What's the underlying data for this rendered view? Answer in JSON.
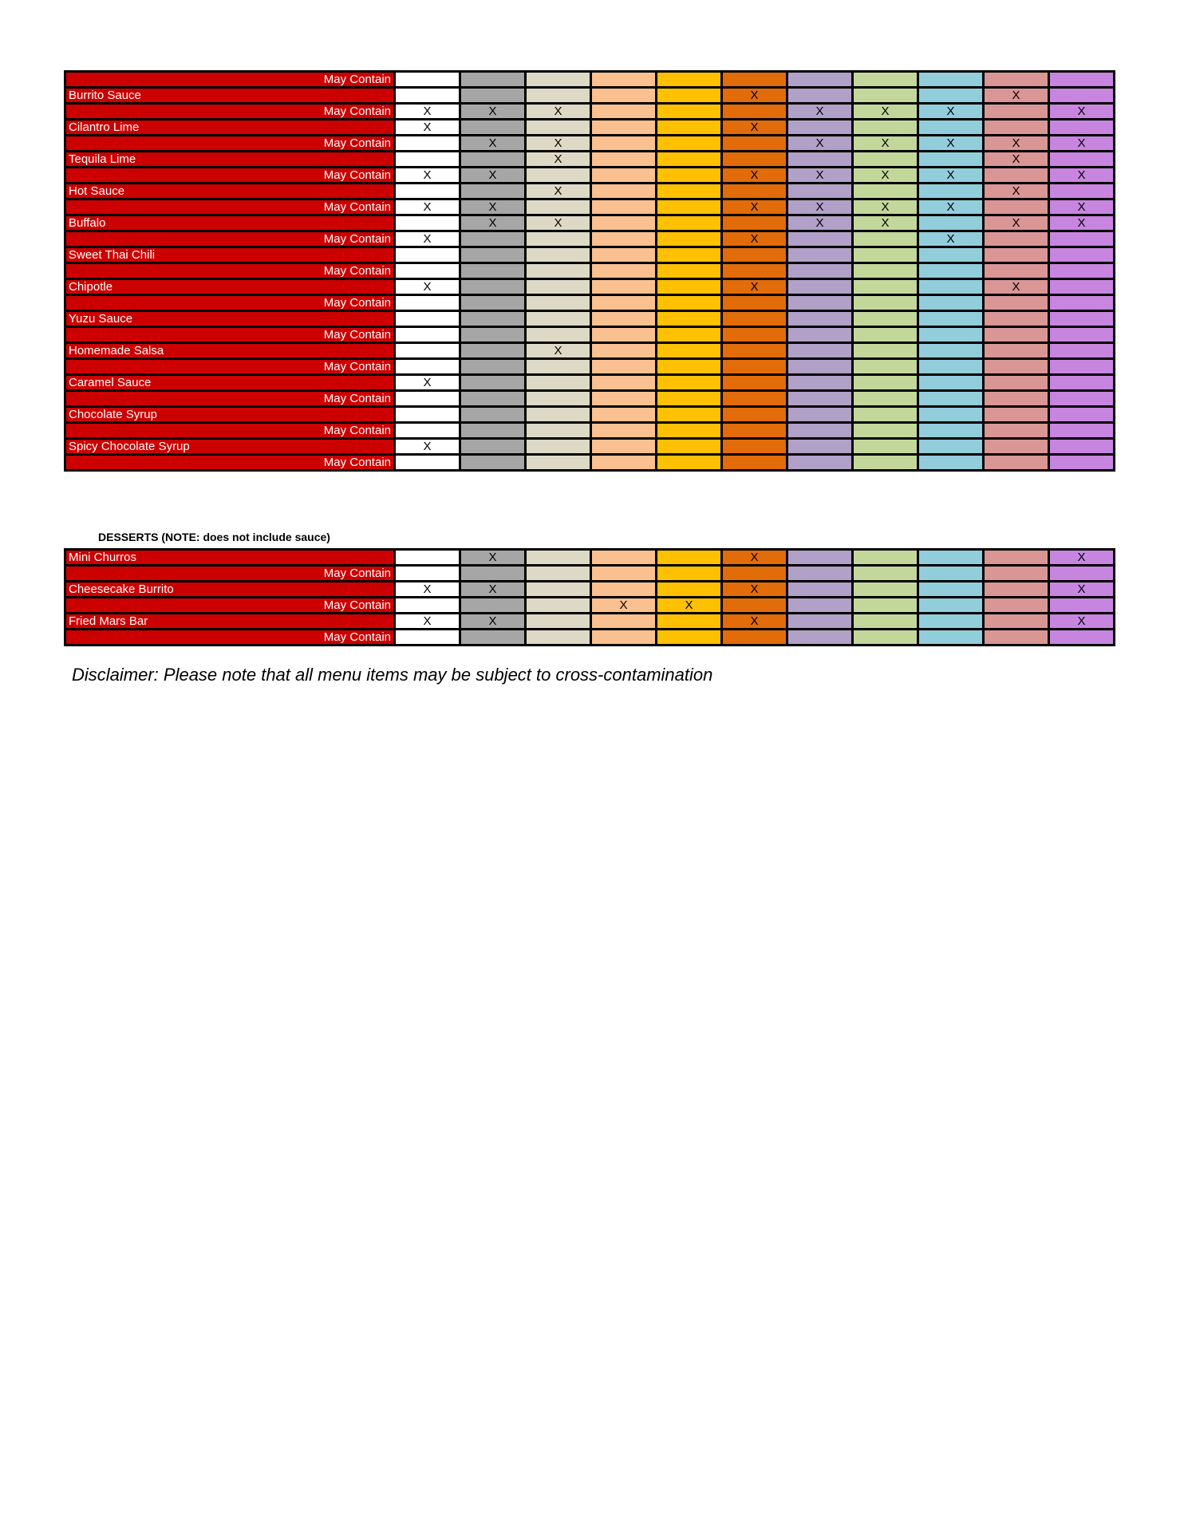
{
  "column_colors": [
    "#ffffff",
    "#a6a6a6",
    "#ddd9c4",
    "#fac090",
    "#ffc000",
    "#e26b0a",
    "#b1a0c7",
    "#c4d79b",
    "#92cddc",
    "#da9694",
    "#c785e0"
  ],
  "label_color": "#cc0000",
  "sauces": [
    {
      "name": "",
      "type": "may",
      "label": "May Contain",
      "marks": [
        "",
        "",
        "",
        "",
        "",
        "",
        "",
        "",
        "",
        "",
        ""
      ]
    },
    {
      "name": "Burrito Sauce",
      "type": "item",
      "label": "Burrito Sauce",
      "marks": [
        "",
        "",
        "",
        "",
        "",
        "X",
        "",
        "",
        "",
        "X",
        ""
      ]
    },
    {
      "type": "may",
      "label": "May Contain",
      "marks": [
        "X",
        "X",
        "X",
        "",
        "",
        "",
        "X",
        "X",
        "X",
        "",
        "X"
      ]
    },
    {
      "type": "item",
      "label": "Cilantro Lime",
      "marks": [
        "X",
        "",
        "",
        "",
        "",
        "X",
        "",
        "",
        "",
        "",
        ""
      ]
    },
    {
      "type": "may",
      "label": "May Contain",
      "marks": [
        "",
        "X",
        "X",
        "",
        "",
        "",
        "X",
        "X",
        "X",
        "X",
        "X"
      ]
    },
    {
      "type": "item",
      "label": "Tequila Lime",
      "marks": [
        "",
        "",
        "X",
        "",
        "",
        "",
        "",
        "",
        "",
        "X",
        ""
      ]
    },
    {
      "type": "may",
      "label": "May Contain",
      "marks": [
        "X",
        "X",
        "",
        "",
        "",
        "X",
        "X",
        "X",
        "X",
        "",
        "X"
      ]
    },
    {
      "type": "item",
      "label": "Hot Sauce",
      "marks": [
        "",
        "",
        "X",
        "",
        "",
        "",
        "",
        "",
        "",
        "X",
        ""
      ]
    },
    {
      "type": "may",
      "label": "May Contain",
      "marks": [
        "X",
        "X",
        "",
        "",
        "",
        "X",
        "X",
        "X",
        "X",
        "",
        "X"
      ]
    },
    {
      "type": "item",
      "label": "Buffalo",
      "marks": [
        "",
        "X",
        "X",
        "",
        "",
        "",
        "X",
        "X",
        "",
        "X",
        "X"
      ]
    },
    {
      "type": "may",
      "label": "May Contain",
      "marks": [
        "X",
        "",
        "",
        "",
        "",
        "X",
        "",
        "",
        "X",
        "",
        ""
      ]
    },
    {
      "type": "item",
      "label": "Sweet Thai Chili",
      "marks": [
        "",
        "",
        "",
        "",
        "",
        "",
        "",
        "",
        "",
        "",
        ""
      ]
    },
    {
      "type": "may",
      "label": "May Contain",
      "marks": [
        "",
        "",
        "",
        "",
        "",
        "",
        "",
        "",
        "",
        "",
        ""
      ]
    },
    {
      "type": "item",
      "label": "Chipotle",
      "marks": [
        "X",
        "",
        "",
        "",
        "",
        "X",
        "",
        "",
        "",
        "X",
        ""
      ]
    },
    {
      "type": "may",
      "label": "May Contain",
      "marks": [
        "",
        "",
        "",
        "",
        "",
        "",
        "",
        "",
        "",
        "",
        ""
      ]
    },
    {
      "type": "item",
      "label": "Yuzu Sauce",
      "marks": [
        "",
        "",
        "",
        "",
        "",
        "",
        "",
        "",
        "",
        "",
        ""
      ]
    },
    {
      "type": "may",
      "label": "May Contain",
      "marks": [
        "",
        "",
        "",
        "",
        "",
        "",
        "",
        "",
        "",
        "",
        ""
      ]
    },
    {
      "type": "item",
      "label": "Homemade Salsa",
      "marks": [
        "",
        "",
        "X",
        "",
        "",
        "",
        "",
        "",
        "",
        "",
        ""
      ]
    },
    {
      "type": "may",
      "label": "May Contain",
      "marks": [
        "",
        "",
        "",
        "",
        "",
        "",
        "",
        "",
        "",
        "",
        ""
      ]
    },
    {
      "type": "item",
      "label": "Caramel Sauce",
      "marks": [
        "X",
        "",
        "",
        "",
        "",
        "",
        "",
        "",
        "",
        "",
        ""
      ]
    },
    {
      "type": "may",
      "label": "May Contain",
      "marks": [
        "",
        "",
        "",
        "",
        "",
        "",
        "",
        "",
        "",
        "",
        ""
      ]
    },
    {
      "type": "item",
      "label": "Chocolate Syrup",
      "marks": [
        "",
        "",
        "",
        "",
        "",
        "",
        "",
        "",
        "",
        "",
        ""
      ]
    },
    {
      "type": "may",
      "label": "May Contain",
      "marks": [
        "",
        "",
        "",
        "",
        "",
        "",
        "",
        "",
        "",
        "",
        ""
      ]
    },
    {
      "type": "item",
      "label": "Spicy Chocolate Syrup",
      "marks": [
        "X",
        "",
        "",
        "",
        "",
        "",
        "",
        "",
        "",
        "",
        ""
      ]
    },
    {
      "type": "may",
      "label": "May Contain",
      "marks": [
        "",
        "",
        "",
        "",
        "",
        "",
        "",
        "",
        "",
        "",
        ""
      ]
    }
  ],
  "desserts_heading": "DESSERTS (NOTE: does not include sauce)",
  "desserts": [
    {
      "type": "item",
      "label": "Mini Churros",
      "marks": [
        "",
        "X",
        "",
        "",
        "",
        "X",
        "",
        "",
        "",
        "",
        "X"
      ]
    },
    {
      "type": "may",
      "label": "May Contain",
      "marks": [
        "",
        "",
        "",
        "",
        "",
        "",
        "",
        "",
        "",
        "",
        ""
      ]
    },
    {
      "type": "item",
      "label": "Cheesecake Burrito",
      "marks": [
        "X",
        "X",
        "",
        "",
        "",
        "X",
        "",
        "",
        "",
        "",
        "X"
      ]
    },
    {
      "type": "may",
      "label": "May Contain",
      "marks": [
        "",
        "",
        "",
        "X",
        "X",
        "",
        "",
        "",
        "",
        "",
        ""
      ]
    },
    {
      "type": "item",
      "label": "Fried Mars Bar",
      "marks": [
        "X",
        "X",
        "",
        "",
        "",
        "X",
        "",
        "",
        "",
        "",
        "X"
      ]
    },
    {
      "type": "may",
      "label": "May Contain",
      "marks": [
        "",
        "",
        "",
        "",
        "",
        "",
        "",
        "",
        "",
        "",
        ""
      ]
    }
  ],
  "disclaimer": "Disclaimer: Please note that all menu items may be subject to cross-contamination"
}
